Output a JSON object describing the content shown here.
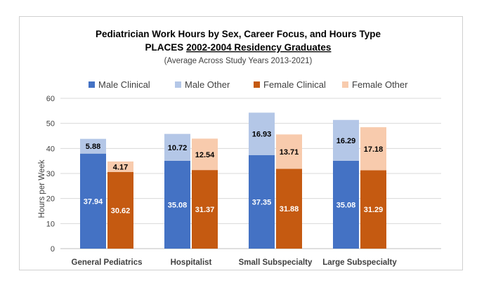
{
  "chart_data": {
    "type": "bar",
    "stacked_groups": true,
    "title_line1": "Pediatrician Work Hours by Sex, Career Focus, and Hours Type",
    "title_line2_prefix": "PLACES ",
    "title_line2_underlined": "2002-2004 Residency Graduates",
    "subtitle": "(Average Across Study Years 2013-2021)",
    "xlabel": "",
    "ylabel": "Hours per Week",
    "ylim": [
      0,
      60
    ],
    "yticks": [
      "0",
      "10",
      "20",
      "30",
      "40",
      "50",
      "60"
    ],
    "grid": true,
    "legend_position": "top",
    "categories": [
      "General Pediatrics",
      "Hospitalist",
      "Small Subspecialty",
      "Large Subspecialty"
    ],
    "series": [
      {
        "name": "Male Clinical",
        "color": "#4472c4",
        "values": [
          37.94,
          35.08,
          37.35,
          35.08
        ]
      },
      {
        "name": "Male Other",
        "color": "#b4c7e7",
        "values": [
          5.88,
          10.72,
          16.93,
          16.29
        ]
      },
      {
        "name": "Female Clinical",
        "color": "#c55a11",
        "values": [
          30.62,
          31.37,
          31.88,
          31.29
        ]
      },
      {
        "name": "Female Other",
        "color": "#f8cbad",
        "values": [
          4.17,
          12.54,
          13.71,
          17.18
        ]
      }
    ],
    "stacks": [
      {
        "label": "Male",
        "clinical_series": 0,
        "other_series": 1
      },
      {
        "label": "Female",
        "clinical_series": 2,
        "other_series": 3
      }
    ],
    "data_labels": {
      "clinical": [
        "37.94",
        "35.08",
        "37.35",
        "35.08",
        "30.62",
        "31.37",
        "31.88",
        "31.29"
      ],
      "other": [
        "5.88",
        "10.72",
        "16.93",
        "16.29",
        "4.17",
        "12.54",
        "13.71",
        "17.18"
      ]
    }
  }
}
